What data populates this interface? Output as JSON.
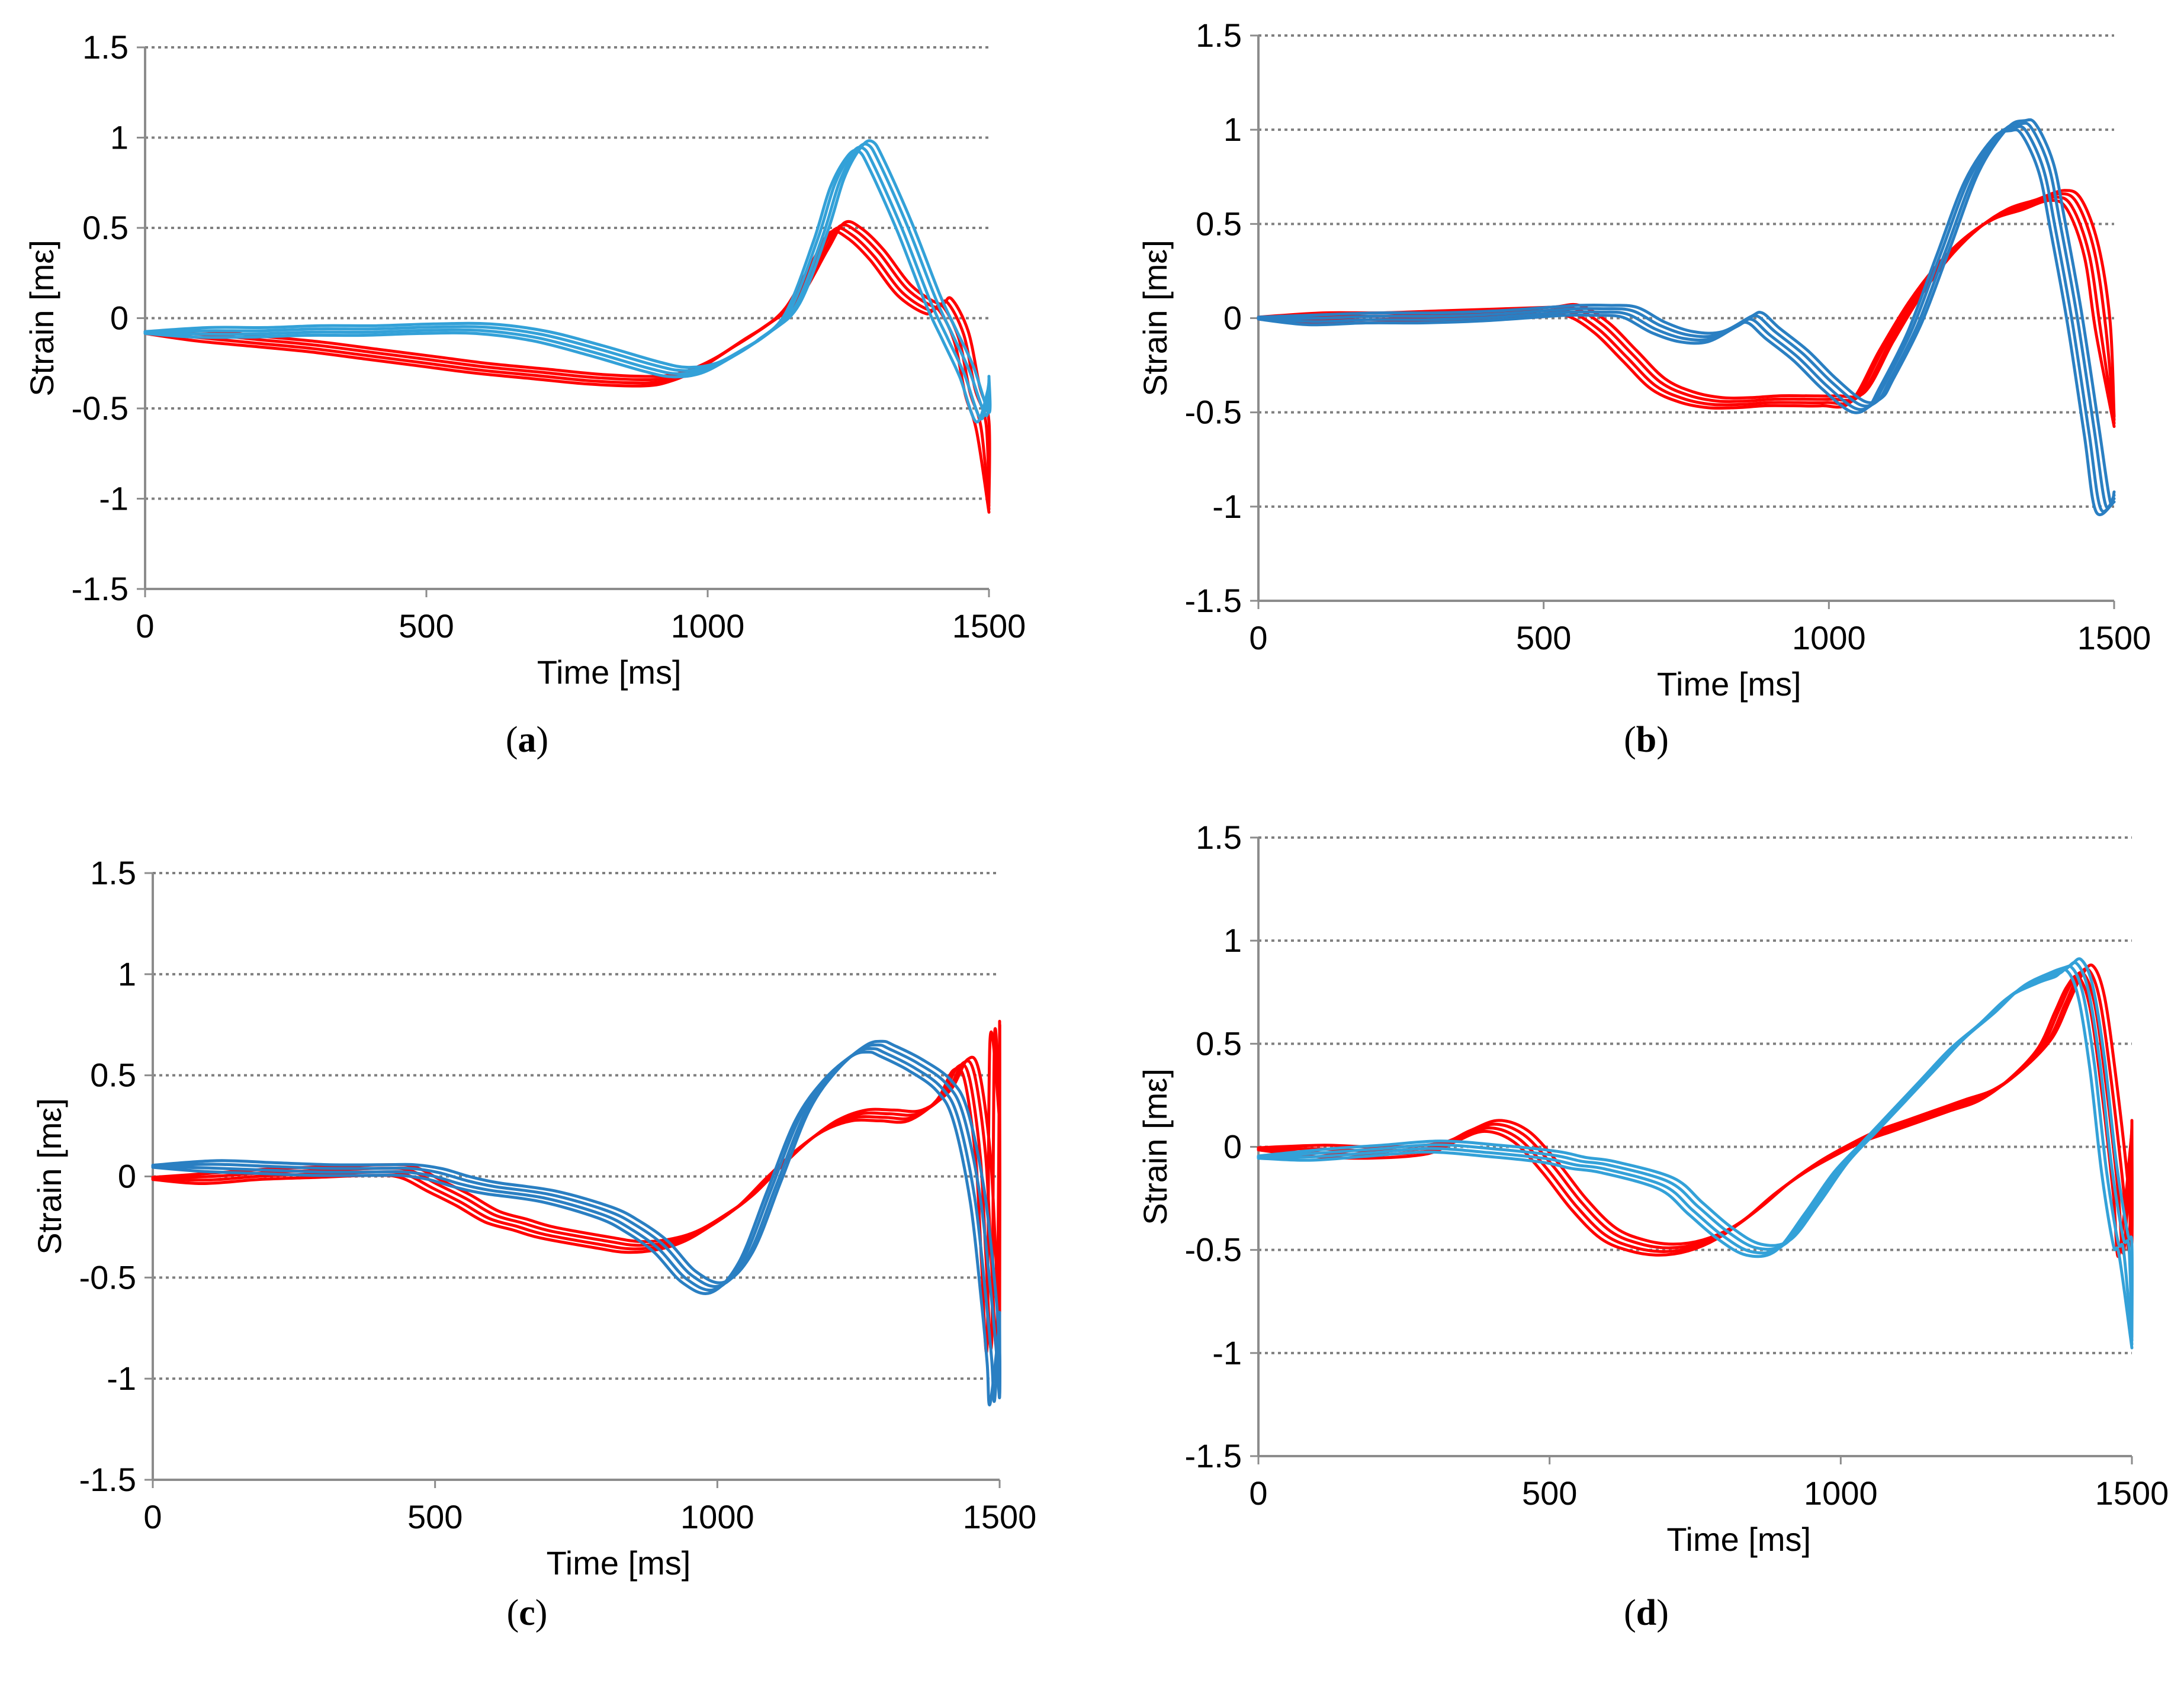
{
  "colors": {
    "red": "#ff0000",
    "blue_light": "#33a1d8",
    "blue_dark": "#2a7fc2",
    "grid": "#7f7f7f",
    "axis": "#8c8c8c"
  },
  "chart_data": [
    {
      "id": "a",
      "caption": "a",
      "type": "line",
      "xlabel": "Time [ms]",
      "ylabel": "Strain [mε]",
      "xlim": [
        0,
        1500
      ],
      "ylim": [
        -1.5,
        1.5
      ],
      "xticks": [
        "0",
        "500",
        "1000",
        "1500"
      ],
      "yticks": [
        "-1.5",
        "-1",
        "-0.5",
        "0",
        "0.5",
        "1",
        "1.5"
      ],
      "grid": "horizontal dotted",
      "series": [
        {
          "color": "red",
          "count": 4,
          "x": [
            0,
            100,
            200,
            300,
            400,
            500,
            600,
            700,
            800,
            900,
            950,
            1000,
            1050,
            1100,
            1150,
            1200,
            1230,
            1260,
            1300,
            1350,
            1400,
            1420,
            1450,
            1470,
            1490,
            1500
          ],
          "y": [
            -0.08,
            -0.1,
            -0.13,
            -0.16,
            -0.2,
            -0.24,
            -0.28,
            -0.31,
            -0.34,
            -0.35,
            -0.32,
            -0.25,
            -0.15,
            -0.05,
            0.08,
            0.35,
            0.5,
            0.47,
            0.35,
            0.15,
            0.05,
            0.08,
            -0.1,
            -0.4,
            -0.6,
            -1.05
          ]
        },
        {
          "color": "blue_light",
          "count": 4,
          "x": [
            0,
            100,
            200,
            300,
            400,
            500,
            600,
            700,
            800,
            900,
            950,
            1000,
            1050,
            1100,
            1150,
            1200,
            1230,
            1260,
            1280,
            1300,
            1350,
            1400,
            1430,
            1460,
            1490,
            1500
          ],
          "y": [
            -0.08,
            -0.08,
            -0.08,
            -0.07,
            -0.07,
            -0.06,
            -0.06,
            -0.1,
            -0.18,
            -0.27,
            -0.3,
            -0.28,
            -0.2,
            -0.1,
            0.05,
            0.45,
            0.75,
            0.92,
            0.95,
            0.85,
            0.5,
            0.1,
            -0.1,
            -0.3,
            -0.55,
            -0.35
          ]
        }
      ]
    },
    {
      "id": "b",
      "caption": "b",
      "type": "line",
      "xlabel": "Time [ms]",
      "ylabel": "Strain [mε]",
      "xlim": [
        0,
        1500
      ],
      "ylim": [
        -1.5,
        1.5
      ],
      "xticks": [
        "0",
        "500",
        "1000",
        "1500"
      ],
      "yticks": [
        "-1.5",
        "-1",
        "-0.5",
        "0",
        "0.5",
        "1",
        "1.5"
      ],
      "grid": "horizontal dotted",
      "series": [
        {
          "color": "red",
          "count": 4,
          "x": [
            0,
            100,
            200,
            300,
            400,
            500,
            550,
            600,
            650,
            700,
            750,
            800,
            850,
            900,
            950,
            1000,
            1050,
            1100,
            1150,
            1200,
            1250,
            1300,
            1350,
            1400,
            1430,
            1460,
            1480,
            1500
          ],
          "y": [
            0,
            0,
            0,
            0.01,
            0.02,
            0.03,
            0.04,
            -0.05,
            -0.2,
            -0.35,
            -0.42,
            -0.45,
            -0.45,
            -0.44,
            -0.44,
            -0.44,
            -0.42,
            -0.15,
            0.1,
            0.3,
            0.45,
            0.55,
            0.6,
            0.65,
            0.6,
            0.35,
            -0.05,
            -0.55
          ]
        },
        {
          "color": "blue_dark",
          "count": 4,
          "x": [
            0,
            100,
            200,
            300,
            400,
            500,
            550,
            600,
            650,
            700,
            750,
            800,
            850,
            870,
            900,
            950,
            1000,
            1050,
            1080,
            1100,
            1150,
            1200,
            1250,
            1300,
            1330,
            1350,
            1380,
            1400,
            1430,
            1460,
            1480,
            1500
          ],
          "y": [
            0,
            -0.01,
            0,
            0,
            0.01,
            0.03,
            0.04,
            0.04,
            0.03,
            -0.05,
            -0.1,
            -0.1,
            -0.02,
            0.0,
            -0.08,
            -0.2,
            -0.35,
            -0.47,
            -0.45,
            -0.35,
            -0.05,
            0.35,
            0.75,
            0.98,
            1.02,
            1.0,
            0.8,
            0.5,
            0.0,
            -0.6,
            -1.0,
            -0.95
          ]
        }
      ]
    },
    {
      "id": "c",
      "caption": "c",
      "type": "line",
      "xlabel": "Time [ms]",
      "ylabel": "Strain [mε]",
      "xlim": [
        0,
        1500
      ],
      "ylim": [
        -1.5,
        1.5
      ],
      "xticks": [
        "0",
        "500",
        "1000",
        "1500"
      ],
      "yticks": [
        "-1.5",
        "-1",
        "-0.5",
        "0",
        "0.5",
        "1",
        "1.5"
      ],
      "grid": "horizontal dotted",
      "series": [
        {
          "color": "red",
          "count": 4,
          "x": [
            0,
            100,
            200,
            300,
            400,
            450,
            500,
            550,
            600,
            650,
            700,
            800,
            850,
            900,
            950,
            1000,
            1050,
            1100,
            1150,
            1200,
            1250,
            1300,
            1350,
            1400,
            1430,
            1450,
            1470,
            1480,
            1490,
            1495,
            1500
          ],
          "y": [
            -0.01,
            -0.01,
            0.01,
            0.02,
            0.03,
            0.02,
            -0.05,
            -0.12,
            -0.2,
            -0.24,
            -0.28,
            -0.33,
            -0.35,
            -0.34,
            -0.3,
            -0.22,
            -0.12,
            0.02,
            0.15,
            0.25,
            0.3,
            0.3,
            0.3,
            0.4,
            0.55,
            0.5,
            0.1,
            -0.4,
            -0.8,
            0.7,
            0.3
          ]
        },
        {
          "color": "blue_dark",
          "count": 4,
          "x": [
            0,
            100,
            200,
            300,
            400,
            450,
            500,
            550,
            600,
            700,
            800,
            850,
            900,
            950,
            1000,
            1050,
            1100,
            1150,
            1200,
            1250,
            1280,
            1300,
            1350,
            1400,
            1430,
            1460,
            1480,
            1490,
            1495,
            1500
          ],
          "y": [
            0.05,
            0.05,
            0.04,
            0.03,
            0.03,
            0.03,
            0.01,
            -0.03,
            -0.06,
            -0.1,
            -0.18,
            -0.25,
            -0.35,
            -0.5,
            -0.55,
            -0.4,
            -0.05,
            0.3,
            0.5,
            0.62,
            0.64,
            0.62,
            0.55,
            0.45,
            0.3,
            -0.1,
            -0.6,
            -0.9,
            -1.1,
            -0.7
          ]
        }
      ]
    },
    {
      "id": "d",
      "caption": "d",
      "type": "line",
      "xlabel": "Time [ms]",
      "ylabel": "Strain [mε]",
      "xlim": [
        0,
        1500
      ],
      "ylim": [
        -1.5,
        1.5
      ],
      "xticks": [
        "0",
        "500",
        "1000",
        "1500"
      ],
      "yticks": [
        "-1.5",
        "-1",
        "-0.5",
        "0",
        "0.5",
        "1",
        "1.5"
      ],
      "grid": "horizontal dotted",
      "series": [
        {
          "color": "red",
          "count": 4,
          "x": [
            0,
            100,
            200,
            300,
            350,
            400,
            450,
            500,
            550,
            600,
            650,
            700,
            750,
            800,
            850,
            900,
            950,
            1000,
            1050,
            1100,
            1150,
            1200,
            1250,
            1300,
            1350,
            1380,
            1400,
            1420,
            1440,
            1460,
            1480,
            1490,
            1500
          ],
          "y": [
            -0.01,
            -0.02,
            -0.03,
            -0.01,
            0.05,
            0.1,
            0.05,
            -0.1,
            -0.28,
            -0.42,
            -0.48,
            -0.5,
            -0.48,
            -0.42,
            -0.32,
            -0.2,
            -0.1,
            -0.02,
            0.05,
            0.1,
            0.15,
            0.2,
            0.25,
            0.35,
            0.5,
            0.68,
            0.8,
            0.85,
            0.7,
            0.3,
            -0.2,
            -0.5,
            0.1
          ]
        },
        {
          "color": "blue_light",
          "count": 4,
          "x": [
            0,
            100,
            200,
            300,
            400,
            500,
            550,
            600,
            700,
            750,
            800,
            850,
            900,
            950,
            1000,
            1050,
            1100,
            1150,
            1200,
            1250,
            1300,
            1350,
            1380,
            1400,
            1420,
            1440,
            1460,
            1480,
            1490,
            1500
          ],
          "y": [
            -0.05,
            -0.04,
            -0.02,
            0.0,
            -0.02,
            -0.05,
            -0.08,
            -0.1,
            -0.18,
            -0.3,
            -0.42,
            -0.5,
            -0.48,
            -0.3,
            -0.1,
            0.05,
            0.2,
            0.35,
            0.5,
            0.62,
            0.75,
            0.82,
            0.85,
            0.88,
            0.75,
            0.4,
            -0.1,
            -0.45,
            -0.5,
            -0.95
          ]
        }
      ]
    }
  ]
}
